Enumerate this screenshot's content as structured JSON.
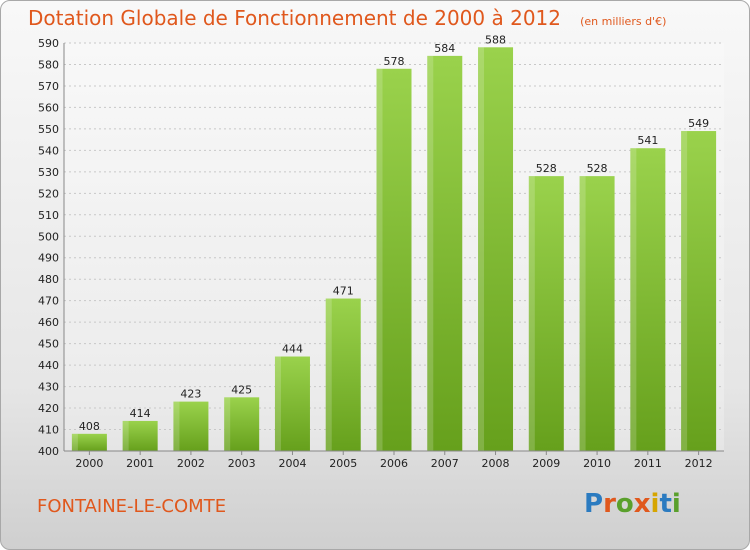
{
  "title": "Dotation Globale de Fonctionnement de 2000 à 2012",
  "unit_note": "(en milliers d'€)",
  "town": "FONTAINE-LE-COMTE",
  "logo": {
    "text": "Proxiti",
    "colors": [
      "#2b7bc0",
      "#e0581d",
      "#5aa02c",
      "#e0581d",
      "#d6a500",
      "#2b7bc0",
      "#5aa02c"
    ]
  },
  "colors": {
    "bar_light": "#9ad24c",
    "bar_dark": "#66a01c",
    "title": "#e0581d"
  },
  "chart_data": {
    "type": "bar",
    "categories": [
      "2000",
      "2001",
      "2002",
      "2003",
      "2004",
      "2005",
      "2006",
      "2007",
      "2008",
      "2009",
      "2010",
      "2011",
      "2012"
    ],
    "values": [
      408,
      414,
      423,
      425,
      444,
      471,
      578,
      584,
      588,
      528,
      528,
      541,
      549
    ],
    "ylim": [
      400,
      590
    ],
    "ytick_step": 10,
    "grid": true,
    "xlabel": "",
    "ylabel": ""
  }
}
